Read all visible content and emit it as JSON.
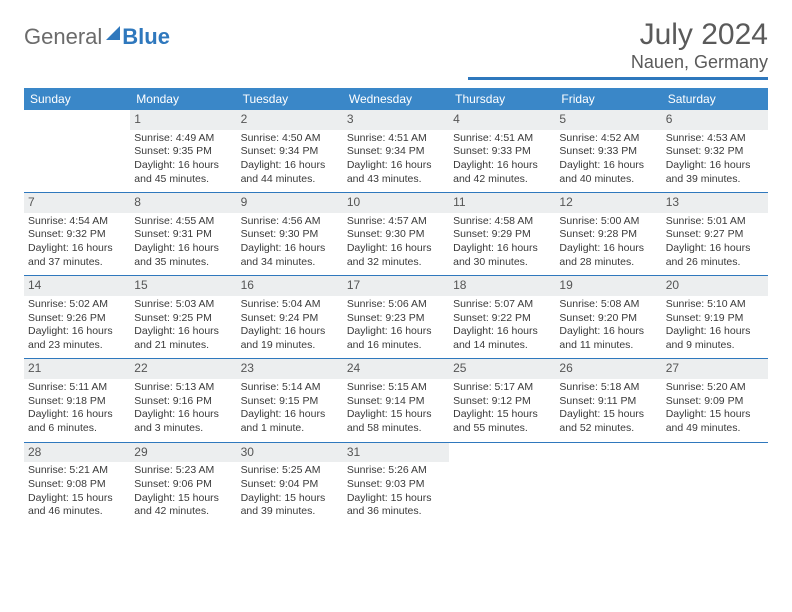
{
  "brand": {
    "part1": "General",
    "part2": "Blue"
  },
  "header": {
    "month_year": "July 2024",
    "location": "Nauen, Germany"
  },
  "calendar": {
    "header_bg": "#3a87c8",
    "header_fg": "#ffffff",
    "divider_color": "#2f78bd",
    "daynum_bg": "#eceeef",
    "text_color": "#3a3a3a",
    "weekdays": [
      "Sunday",
      "Monday",
      "Tuesday",
      "Wednesday",
      "Thursday",
      "Friday",
      "Saturday"
    ],
    "weeks": [
      [
        null,
        {
          "n": "1",
          "sr": "4:49 AM",
          "ss": "9:35 PM",
          "dl": "16 hours and 45 minutes."
        },
        {
          "n": "2",
          "sr": "4:50 AM",
          "ss": "9:34 PM",
          "dl": "16 hours and 44 minutes."
        },
        {
          "n": "3",
          "sr": "4:51 AM",
          "ss": "9:34 PM",
          "dl": "16 hours and 43 minutes."
        },
        {
          "n": "4",
          "sr": "4:51 AM",
          "ss": "9:33 PM",
          "dl": "16 hours and 42 minutes."
        },
        {
          "n": "5",
          "sr": "4:52 AM",
          "ss": "9:33 PM",
          "dl": "16 hours and 40 minutes."
        },
        {
          "n": "6",
          "sr": "4:53 AM",
          "ss": "9:32 PM",
          "dl": "16 hours and 39 minutes."
        }
      ],
      [
        {
          "n": "7",
          "sr": "4:54 AM",
          "ss": "9:32 PM",
          "dl": "16 hours and 37 minutes."
        },
        {
          "n": "8",
          "sr": "4:55 AM",
          "ss": "9:31 PM",
          "dl": "16 hours and 35 minutes."
        },
        {
          "n": "9",
          "sr": "4:56 AM",
          "ss": "9:30 PM",
          "dl": "16 hours and 34 minutes."
        },
        {
          "n": "10",
          "sr": "4:57 AM",
          "ss": "9:30 PM",
          "dl": "16 hours and 32 minutes."
        },
        {
          "n": "11",
          "sr": "4:58 AM",
          "ss": "9:29 PM",
          "dl": "16 hours and 30 minutes."
        },
        {
          "n": "12",
          "sr": "5:00 AM",
          "ss": "9:28 PM",
          "dl": "16 hours and 28 minutes."
        },
        {
          "n": "13",
          "sr": "5:01 AM",
          "ss": "9:27 PM",
          "dl": "16 hours and 26 minutes."
        }
      ],
      [
        {
          "n": "14",
          "sr": "5:02 AM",
          "ss": "9:26 PM",
          "dl": "16 hours and 23 minutes."
        },
        {
          "n": "15",
          "sr": "5:03 AM",
          "ss": "9:25 PM",
          "dl": "16 hours and 21 minutes."
        },
        {
          "n": "16",
          "sr": "5:04 AM",
          "ss": "9:24 PM",
          "dl": "16 hours and 19 minutes."
        },
        {
          "n": "17",
          "sr": "5:06 AM",
          "ss": "9:23 PM",
          "dl": "16 hours and 16 minutes."
        },
        {
          "n": "18",
          "sr": "5:07 AM",
          "ss": "9:22 PM",
          "dl": "16 hours and 14 minutes."
        },
        {
          "n": "19",
          "sr": "5:08 AM",
          "ss": "9:20 PM",
          "dl": "16 hours and 11 minutes."
        },
        {
          "n": "20",
          "sr": "5:10 AM",
          "ss": "9:19 PM",
          "dl": "16 hours and 9 minutes."
        }
      ],
      [
        {
          "n": "21",
          "sr": "5:11 AM",
          "ss": "9:18 PM",
          "dl": "16 hours and 6 minutes."
        },
        {
          "n": "22",
          "sr": "5:13 AM",
          "ss": "9:16 PM",
          "dl": "16 hours and 3 minutes."
        },
        {
          "n": "23",
          "sr": "5:14 AM",
          "ss": "9:15 PM",
          "dl": "16 hours and 1 minute."
        },
        {
          "n": "24",
          "sr": "5:15 AM",
          "ss": "9:14 PM",
          "dl": "15 hours and 58 minutes."
        },
        {
          "n": "25",
          "sr": "5:17 AM",
          "ss": "9:12 PM",
          "dl": "15 hours and 55 minutes."
        },
        {
          "n": "26",
          "sr": "5:18 AM",
          "ss": "9:11 PM",
          "dl": "15 hours and 52 minutes."
        },
        {
          "n": "27",
          "sr": "5:20 AM",
          "ss": "9:09 PM",
          "dl": "15 hours and 49 minutes."
        }
      ],
      [
        {
          "n": "28",
          "sr": "5:21 AM",
          "ss": "9:08 PM",
          "dl": "15 hours and 46 minutes."
        },
        {
          "n": "29",
          "sr": "5:23 AM",
          "ss": "9:06 PM",
          "dl": "15 hours and 42 minutes."
        },
        {
          "n": "30",
          "sr": "5:25 AM",
          "ss": "9:04 PM",
          "dl": "15 hours and 39 minutes."
        },
        {
          "n": "31",
          "sr": "5:26 AM",
          "ss": "9:03 PM",
          "dl": "15 hours and 36 minutes."
        },
        null,
        null,
        null
      ]
    ],
    "labels": {
      "sunrise": "Sunrise:",
      "sunset": "Sunset:",
      "daylight": "Daylight:"
    }
  }
}
